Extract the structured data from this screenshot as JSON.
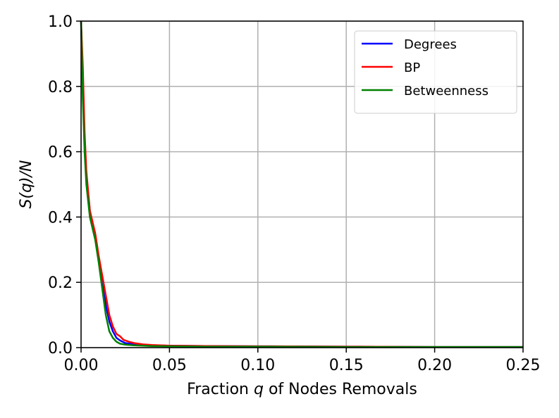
{
  "chart_data": {
    "type": "line",
    "xlabel_prefix": "Fraction ",
    "xlabel_var": "q",
    "xlabel_suffix": " of Nodes Removals",
    "ylabel_text": "S(q)/N",
    "xlim": [
      0.0,
      0.25
    ],
    "ylim": [
      0.0,
      1.0
    ],
    "xticks": [
      "0.00",
      "0.05",
      "0.10",
      "0.15",
      "0.20",
      "0.25"
    ],
    "yticks": [
      "0.0",
      "0.2",
      "0.4",
      "0.6",
      "0.8",
      "1.0"
    ],
    "grid": true,
    "legend_position": "top-right",
    "series": [
      {
        "name": "Degrees",
        "color": "#0000ff",
        "x": [
          0.0,
          0.001,
          0.002,
          0.003,
          0.005,
          0.008,
          0.01,
          0.012,
          0.014,
          0.016,
          0.018,
          0.02,
          0.022,
          0.025,
          0.03,
          0.035,
          0.04,
          0.05,
          0.07,
          0.1,
          0.15,
          0.2,
          0.25
        ],
        "y": [
          1.0,
          0.8,
          0.64,
          0.52,
          0.42,
          0.34,
          0.27,
          0.2,
          0.13,
          0.08,
          0.05,
          0.03,
          0.022,
          0.014,
          0.01,
          0.008,
          0.007,
          0.006,
          0.005,
          0.004,
          0.003,
          0.002,
          0.002
        ]
      },
      {
        "name": "BP",
        "color": "#ff0000",
        "x": [
          0.0,
          0.001,
          0.002,
          0.003,
          0.005,
          0.008,
          0.01,
          0.012,
          0.014,
          0.016,
          0.018,
          0.02,
          0.022,
          0.024,
          0.027,
          0.03,
          0.035,
          0.04,
          0.05,
          0.07,
          0.1,
          0.15,
          0.2,
          0.25
        ],
        "y": [
          1.0,
          0.86,
          0.66,
          0.54,
          0.42,
          0.35,
          0.28,
          0.22,
          0.16,
          0.1,
          0.065,
          0.042,
          0.035,
          0.024,
          0.018,
          0.014,
          0.01,
          0.008,
          0.006,
          0.005,
          0.004,
          0.003,
          0.002,
          0.002
        ]
      },
      {
        "name": "Betweenness",
        "color": "#008000",
        "x": [
          0.0,
          0.001,
          0.002,
          0.003,
          0.005,
          0.008,
          0.01,
          0.012,
          0.014,
          0.016,
          0.018,
          0.02,
          0.022,
          0.025,
          0.03,
          0.035,
          0.04,
          0.05,
          0.07,
          0.1,
          0.15,
          0.2,
          0.25
        ],
        "y": [
          1.0,
          0.76,
          0.6,
          0.5,
          0.4,
          0.33,
          0.26,
          0.18,
          0.1,
          0.05,
          0.03,
          0.018,
          0.012,
          0.009,
          0.007,
          0.006,
          0.005,
          0.004,
          0.003,
          0.003,
          0.002,
          0.002,
          0.002
        ]
      }
    ]
  }
}
